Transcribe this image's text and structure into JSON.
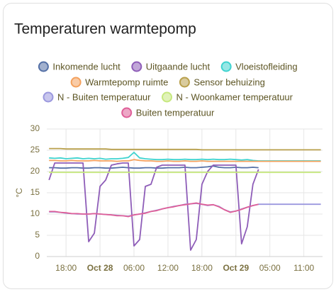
{
  "chart_data": {
    "type": "line",
    "title": "Temperaturen warmtepomp",
    "y_label": "°C",
    "x": [
      15,
      16,
      17,
      18,
      19,
      20,
      21,
      22,
      23,
      24,
      25,
      26,
      27,
      28,
      29,
      30,
      31,
      32,
      33,
      34,
      35,
      36,
      37,
      38,
      39,
      40,
      41,
      42,
      43,
      44,
      45,
      46,
      47,
      48,
      49,
      50,
      51,
      52,
      53,
      54,
      55,
      56,
      57,
      58,
      59,
      60,
      61,
      62,
      63
    ],
    "xlim": [
      14.6,
      63.3
    ],
    "xticks": [
      {
        "value": 18,
        "label": "18:00"
      },
      {
        "value": 24,
        "label": "Oct 28"
      },
      {
        "value": 30,
        "label": "06:00"
      },
      {
        "value": 36,
        "label": "12:00"
      },
      {
        "value": 42,
        "label": "18:00"
      },
      {
        "value": 48,
        "label": "Oct 29"
      },
      {
        "value": 54,
        "label": "05:00"
      },
      {
        "value": 60,
        "label": "11:00"
      }
    ],
    "ylim": [
      0,
      30
    ],
    "yticks": [
      0,
      5,
      10,
      15,
      20,
      25,
      30
    ],
    "grid": true,
    "series": [
      {
        "name": "Inkomende lucht",
        "color": "#5470a6",
        "values": [
          20.9,
          20.9,
          20.8,
          20.8,
          20.9,
          20.9,
          20.8,
          20.8,
          20.9,
          20.9,
          20.8,
          20.8,
          20.9,
          21,
          20.9,
          20.8,
          20.8,
          20.9,
          20.9,
          20.8,
          20.8,
          20.9,
          20.9,
          20.9,
          21,
          20.9,
          20.9,
          21,
          21.1,
          21.3,
          21,
          20.9,
          20.9,
          21,
          20.9,
          20.9,
          21,
          20.9,
          null,
          null,
          null,
          null,
          null,
          null,
          null,
          null,
          null,
          null,
          null
        ]
      },
      {
        "name": "Uitgaande lucht",
        "color": "#8e5db8",
        "values": [
          18,
          22,
          22,
          22,
          22,
          22,
          22,
          3.5,
          5.5,
          16.5,
          18,
          21.5,
          21.8,
          22,
          22,
          2.5,
          4,
          16.5,
          17,
          21,
          21.5,
          21.5,
          21.5,
          21.5,
          21.5,
          1.5,
          4,
          17,
          20,
          21.5,
          21.5,
          21.5,
          21.5,
          21.5,
          3,
          7,
          17,
          20.5,
          null,
          null,
          null,
          null,
          null,
          null,
          null,
          null,
          null,
          null,
          null
        ]
      },
      {
        "name": "Vloeistofleiding",
        "color": "#3fd3cf",
        "values": [
          23.2,
          23.1,
          23.2,
          23,
          23.1,
          23.2,
          23,
          23.1,
          23,
          23.1,
          22.9,
          23,
          23,
          23.1,
          23.3,
          24.5,
          23.2,
          23,
          22.9,
          22.8,
          22.8,
          22.9,
          22.8,
          22.8,
          22.9,
          22.8,
          22.8,
          22.9,
          22.8,
          22.9,
          22.8,
          22.8,
          22.9,
          22.8,
          22.7,
          22.8,
          22.6,
          22.5,
          22.5,
          22.5,
          22.5,
          22.5,
          22.5,
          22.5,
          22.5,
          22.5,
          22.5,
          22.5,
          22.5
        ]
      },
      {
        "name": "Warmtepomp ruimte",
        "color": "#f4a15d",
        "values": [
          22.6,
          22.6,
          22.5,
          22.5,
          22.6,
          22.5,
          22.5,
          22.5,
          22.6,
          22.5,
          22.5,
          22.5,
          22.4,
          22.5,
          22.5,
          22.8,
          22.6,
          22.5,
          22.5,
          22.4,
          22.4,
          22.5,
          22.4,
          22.4,
          22.5,
          22.4,
          22.4,
          22.5,
          22.4,
          22.4,
          22.4,
          22.4,
          22.4,
          22.4,
          22.4,
          22.4,
          22.4,
          22.4,
          22.4,
          22.4,
          22.4,
          22.4,
          22.4,
          22.4,
          22.4,
          22.4,
          22.4,
          22.4,
          22.4
        ]
      },
      {
        "name": "Sensor behuizing",
        "color": "#b9a04c",
        "values": [
          25.4,
          25.4,
          25.4,
          25.3,
          25.3,
          25.3,
          25.3,
          25.3,
          25.3,
          25.3,
          25.3,
          25.2,
          25.2,
          25.2,
          25.2,
          25.2,
          25.2,
          25.2,
          25.2,
          25.2,
          25.2,
          25.2,
          25.2,
          25.2,
          25.2,
          25.2,
          25.2,
          25.1,
          25.1,
          25.1,
          25.1,
          25.1,
          25.1,
          25.1,
          25.1,
          25.1,
          25.1,
          25.1,
          25.1,
          25.1,
          25.1,
          25.1,
          25.1,
          25.1,
          25.1,
          25.1,
          25.1,
          25.1,
          25.1
        ]
      },
      {
        "name": "N - Buiten temperatuur",
        "color": "#9b98de",
        "values": [
          10.5,
          10.5,
          10.4,
          10.2,
          10.1,
          10,
          10,
          10,
          10.1,
          10,
          9.9,
          9.8,
          9.7,
          9.6,
          9.5,
          9.8,
          10,
          10.3,
          10.6,
          10.9,
          11.2,
          11.5,
          11.8,
          12,
          12.3,
          12.4,
          12.5,
          12.3,
          12,
          12.2,
          11.8,
          11,
          10.5,
          10.7,
          11.2,
          11.6,
          12,
          12.3,
          12.3,
          12.3,
          12.3,
          12.3,
          12.3,
          12.3,
          12.3,
          12.3,
          12.3,
          12.3,
          12.3
        ]
      },
      {
        "name": "N - Woonkamer temperatuur",
        "color": "#c6e87e",
        "values": [
          19.8,
          19.8,
          19.8,
          19.8,
          19.8,
          19.8,
          19.8,
          19.8,
          19.8,
          19.8,
          19.8,
          19.8,
          19.8,
          19.8,
          19.8,
          19.8,
          19.8,
          19.8,
          19.8,
          19.8,
          19.8,
          19.8,
          19.8,
          19.8,
          19.8,
          19.8,
          19.8,
          19.8,
          19.8,
          19.8,
          19.8,
          19.8,
          19.8,
          19.8,
          19.8,
          19.8,
          19.8,
          19.8,
          19.8,
          19.8,
          19.8,
          19.8,
          19.8,
          19.8,
          19.8,
          19.8,
          19.8,
          19.8,
          19.8
        ]
      },
      {
        "name": "Buiten temperatuur",
        "color": "#df5f98",
        "values": [
          10.6,
          10.6,
          10.4,
          10.3,
          10.1,
          10.1,
          10,
          10,
          10.1,
          10,
          9.9,
          9.8,
          9.6,
          9.6,
          9.4,
          9.8,
          10,
          10.2,
          10.6,
          10.8,
          11.2,
          11.5,
          11.7,
          12,
          12.2,
          12.4,
          12.6,
          12.3,
          12.1,
          12.2,
          11.7,
          11,
          10.4,
          10.7,
          11.1,
          11.6,
          12,
          12.3,
          null,
          null,
          null,
          null,
          null,
          null,
          null,
          null,
          null,
          null,
          null
        ]
      }
    ]
  }
}
